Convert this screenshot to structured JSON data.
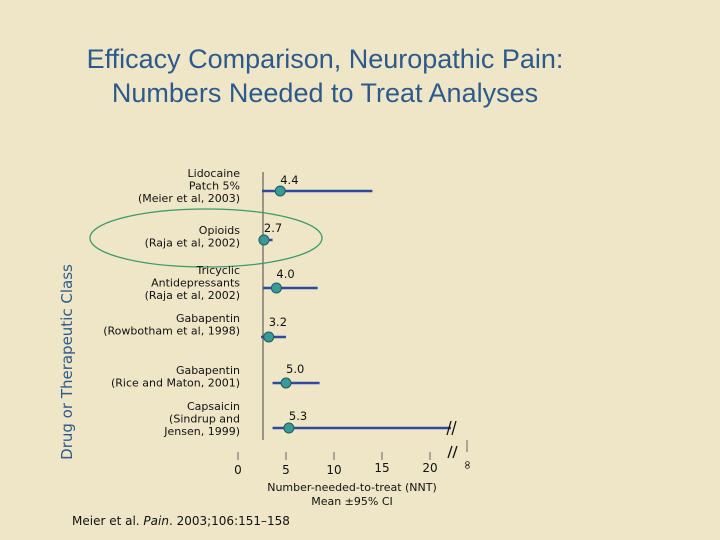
{
  "title_line1": "Efficacy Comparison, Neuropathic Pain:",
  "title_line2": "Numbers Needed to Treat Analyses",
  "citation": {
    "prefix": "Meier et al. ",
    "journal": "Pain",
    "suffix": ". 2003;106:151–158"
  },
  "colors": {
    "title": "#2d5a8c",
    "bar": "#2e4a9e",
    "marker": "#3a9a9a",
    "highlight": "#3a9a6a"
  },
  "chart_data": {
    "type": "forest",
    "title": "Efficacy Comparison, Neuropathic Pain: Numbers Needed to Treat Analyses",
    "ylabel": "Drug or Therapeutic Class",
    "xlabel_line1": "Number-needed-to-treat (NNT)",
    "xlabel_line2": "Mean ±95% CI",
    "xticks": [
      "0",
      "5",
      "10",
      "15",
      "20",
      "∞"
    ],
    "xlim": [
      0,
      20
    ],
    "highlighted": "Opioids",
    "rows": [
      {
        "label": [
          "Lidocaine",
          "Patch 5%",
          "(Meier et al, 2003)"
        ],
        "nnt": 4.4,
        "nnt_label": "4.4",
        "ci_low": 2.5,
        "ci_high": 14.0
      },
      {
        "label": [
          "Opioids",
          "(Raja et al, 2002)"
        ],
        "nnt": 2.7,
        "nnt_label": "2.7",
        "ci_low": 2.2,
        "ci_high": 3.6
      },
      {
        "label": [
          "Tricyclic",
          "Antidepressants",
          "(Raja et al, 2002)"
        ],
        "nnt": 4.0,
        "nnt_label": "4.0",
        "ci_low": 2.6,
        "ci_high": 8.3
      },
      {
        "label": [
          "Gabapentin",
          "(Rowbotham et al, 1998)"
        ],
        "nnt": 3.2,
        "nnt_label": "3.2",
        "ci_low": 2.4,
        "ci_high": 5.0
      },
      {
        "label": [
          "Gabapentin",
          "(Rice and Maton, 2001)"
        ],
        "nnt": 5.0,
        "nnt_label": "5.0",
        "ci_low": 3.6,
        "ci_high": 8.5
      },
      {
        "label": [
          "Capsaicin",
          "(Sindrup and",
          "Jensen, 1999)"
        ],
        "nnt": 5.3,
        "nnt_label": "5.3",
        "ci_low": 3.6,
        "ci_high": null
      }
    ]
  }
}
